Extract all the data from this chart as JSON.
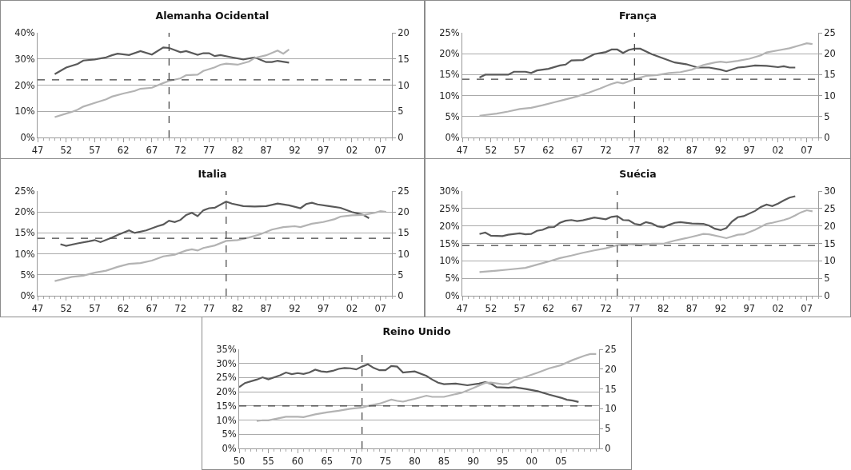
{
  "chart_data": [
    {
      "type": "line",
      "title": "Alemanha Ocidental",
      "xlim": [
        1947,
        2009
      ],
      "xticks": [
        {
          "value": 1947,
          "label": "47"
        },
        {
          "value": 1952,
          "label": "52"
        },
        {
          "value": 1957,
          "label": "57"
        },
        {
          "value": 1962,
          "label": "62"
        },
        {
          "value": 1967,
          "label": "67"
        },
        {
          "value": 1972,
          "label": "72"
        },
        {
          "value": 1977,
          "label": "77"
        },
        {
          "value": 1982,
          "label": "82"
        },
        {
          "value": 1987,
          "label": "87"
        },
        {
          "value": 1992,
          "label": "92"
        },
        {
          "value": 1997,
          "label": "97"
        },
        {
          "value": 2002,
          "label": "02"
        },
        {
          "value": 2007,
          "label": "07"
        }
      ],
      "ylim": [
        0,
        40
      ],
      "yticks": [
        {
          "value": 0,
          "label": "0%"
        },
        {
          "value": 10,
          "label": "10%"
        },
        {
          "value": 20,
          "label": "20%"
        },
        {
          "value": 30,
          "label": "30%"
        },
        {
          "value": 40,
          "label": "40%"
        }
      ],
      "y2lim": [
        0,
        20
      ],
      "y2ticks": [
        0,
        5,
        10,
        15,
        20
      ],
      "grid": "y",
      "marker": "none",
      "line_style": "solid",
      "series": [
        {
          "color": "#595959",
          "x": [
            1950,
            1952,
            1954,
            1955,
            1957,
            1959,
            1960,
            1961,
            1963,
            1965,
            1967,
            1969,
            1970,
            1972,
            1973,
            1975,
            1976,
            1977,
            1978,
            1979,
            1981,
            1983,
            1985,
            1987,
            1988,
            1989,
            1991
          ],
          "values": [
            24.2,
            26.7,
            28.1,
            29.4,
            29.8,
            30.6,
            31.4,
            32,
            31.5,
            33,
            31.7,
            34.4,
            34.2,
            32.6,
            33,
            31.6,
            32.2,
            32.2,
            31.1,
            31.5,
            30.6,
            29.8,
            30.6,
            28.8,
            28.8,
            29.3,
            28.6
          ]
        },
        {
          "color": "#b3b3b3",
          "axis": "y2",
          "x": [
            1950,
            1953,
            1954,
            1955,
            1957,
            1959,
            1960,
            1962,
            1964,
            1965,
            1967,
            1969,
            1970,
            1972,
            1973,
            1975,
            1976,
            1978,
            1979,
            1980,
            1982,
            1984,
            1985,
            1987,
            1989,
            1990,
            1991
          ],
          "values": [
            3.9,
            4.9,
            5.3,
            5.9,
            6.6,
            7.3,
            7.8,
            8.4,
            8.9,
            9.3,
            9.5,
            10.4,
            10.8,
            11.3,
            11.9,
            12,
            12.7,
            13.4,
            13.9,
            14.1,
            13.9,
            14.5,
            15.2,
            15.7,
            16.6,
            16,
            16.8
          ]
        }
      ],
      "ref_lines": [
        {
          "axis": "x",
          "value": 1970,
          "color": "#404040",
          "line_style": "dashed"
        },
        {
          "axis": "y",
          "value": 22,
          "color": "#404040",
          "line_style": "dashed"
        }
      ]
    },
    {
      "type": "line",
      "title": "França",
      "xlim": [
        1947,
        2009.0
      ],
      "xticks": [
        {
          "value": 1947,
          "label": "47"
        },
        {
          "value": 1952,
          "label": "52"
        },
        {
          "value": 1957,
          "label": "57"
        },
        {
          "value": 1962,
          "label": "62"
        },
        {
          "value": 1967,
          "label": "67"
        },
        {
          "value": 1972,
          "label": "72"
        },
        {
          "value": 1977,
          "label": "77"
        },
        {
          "value": 1982,
          "label": "82"
        },
        {
          "value": 1987,
          "label": "87"
        },
        {
          "value": 1992,
          "label": "92"
        },
        {
          "value": 1997,
          "label": "97"
        },
        {
          "value": 2002,
          "label": "02"
        },
        {
          "value": 2007,
          "label": "07"
        }
      ],
      "ylim": [
        0,
        25
      ],
      "yticks": [
        {
          "value": 0,
          "label": "0%"
        },
        {
          "value": 5,
          "label": "5%"
        },
        {
          "value": 10,
          "label": "10%"
        },
        {
          "value": 15,
          "label": "15%"
        },
        {
          "value": 20,
          "label": "20%"
        },
        {
          "value": 25,
          "label": "25%"
        }
      ],
      "y2lim": [
        0,
        25
      ],
      "y2ticks": [
        0,
        5,
        10,
        15,
        20,
        25
      ],
      "grid": "y",
      "marker": "none",
      "line_style": "solid",
      "series": [
        {
          "color": "#595959",
          "x": [
            1950,
            1951,
            1955,
            1956,
            1958,
            1959,
            1960,
            1962,
            1964,
            1965,
            1966,
            1968,
            1970,
            1972,
            1973,
            1974,
            1975,
            1976,
            1977,
            1978,
            1980,
            1982,
            1984,
            1986,
            1988,
            1990,
            1992,
            1993,
            1995,
            1996,
            1998,
            2000,
            2002,
            2003,
            2004,
            2005
          ],
          "values": [
            14.3,
            15,
            15,
            15.7,
            15.7,
            15.4,
            16,
            16.4,
            17.2,
            17.4,
            18.4,
            18.5,
            19.9,
            20.4,
            21,
            21,
            20.2,
            20.9,
            21.2,
            21.2,
            19.9,
            18.9,
            17.9,
            17.5,
            16.7,
            16.7,
            16.2,
            15.8,
            16.7,
            16.8,
            17.2,
            17.1,
            16.8,
            17,
            16.7,
            16.7
          ]
        },
        {
          "color": "#b3b3b3",
          "axis": "y2",
          "x": [
            1950,
            1953,
            1955,
            1957,
            1959,
            1961,
            1963,
            1965,
            1967,
            1969,
            1971,
            1973,
            1974,
            1975,
            1977,
            1979,
            1981,
            1983,
            1985,
            1987,
            1989,
            1991,
            1992,
            1993,
            1995,
            1997,
            1999,
            2000,
            2002,
            2004,
            2006,
            2007,
            2008
          ],
          "values": [
            5.2,
            5.7,
            6.2,
            6.8,
            7.1,
            7.7,
            8.4,
            9.1,
            9.8,
            10.7,
            11.7,
            12.8,
            13.2,
            12.9,
            13.9,
            14.7,
            14.9,
            15.4,
            15.6,
            16.2,
            17.3,
            17.9,
            18.1,
            17.9,
            18.3,
            18.8,
            19.6,
            20.3,
            20.8,
            21.3,
            22.1,
            22.5,
            22.3
          ]
        }
      ],
      "ref_lines": [
        {
          "axis": "x",
          "value": 1977,
          "color": "#404040",
          "line_style": "dashed"
        },
        {
          "axis": "y",
          "value": 13.9,
          "color": "#404040",
          "line_style": "dashed"
        }
      ]
    },
    {
      "type": "line",
      "title": "Italia",
      "xlim": [
        1947,
        2009.0
      ],
      "xticks": [
        {
          "value": 1947,
          "label": "47"
        },
        {
          "value": 1952,
          "label": "52"
        },
        {
          "value": 1957,
          "label": "57"
        },
        {
          "value": 1962,
          "label": "62"
        },
        {
          "value": 1967,
          "label": "67"
        },
        {
          "value": 1972,
          "label": "72"
        },
        {
          "value": 1977,
          "label": "77"
        },
        {
          "value": 1982,
          "label": "82"
        },
        {
          "value": 1987,
          "label": "87"
        },
        {
          "value": 1992,
          "label": "92"
        },
        {
          "value": 1997,
          "label": "97"
        },
        {
          "value": 2002,
          "label": "02"
        },
        {
          "value": 2007,
          "label": "07"
        }
      ],
      "ylim": [
        0,
        25
      ],
      "yticks": [
        {
          "value": 0,
          "label": "0%"
        },
        {
          "value": 5,
          "label": "5%"
        },
        {
          "value": 10,
          "label": "10%"
        },
        {
          "value": 15,
          "label": "15%"
        },
        {
          "value": 20,
          "label": "20%"
        },
        {
          "value": 25,
          "label": "25%"
        }
      ],
      "y2lim": [
        0,
        25
      ],
      "y2ticks": [
        0,
        5,
        10,
        15,
        20,
        25
      ],
      "grid": "y",
      "marker": "none",
      "line_style": "solid",
      "series": [
        {
          "color": "#595959",
          "x": [
            1951,
            1952,
            1954,
            1956,
            1957,
            1958,
            1960,
            1961,
            1963,
            1964,
            1966,
            1968,
            1969,
            1970,
            1971,
            1972,
            1973,
            1974,
            1975,
            1976,
            1977,
            1978,
            1980,
            1981,
            1983,
            1985,
            1987,
            1989,
            1991,
            1993,
            1994,
            1995,
            1996,
            1998,
            2000,
            2002,
            2004,
            2005
          ],
          "values": [
            12.3,
            11.9,
            12.5,
            13,
            13.3,
            12.8,
            13.9,
            14.5,
            15.6,
            15,
            15.6,
            16.6,
            17,
            17.9,
            17.6,
            18.1,
            19.3,
            19.8,
            19,
            20.4,
            20.9,
            21,
            22.5,
            22,
            21.4,
            21.3,
            21.4,
            22,
            21.6,
            20.9,
            21.9,
            22.2,
            21.8,
            21.4,
            21,
            20,
            19.3,
            18.5
          ]
        },
        {
          "color": "#b3b3b3",
          "axis": "y2",
          "x": [
            1950,
            1953,
            1955,
            1957,
            1959,
            1961,
            1963,
            1965,
            1967,
            1969,
            1971,
            1973,
            1974,
            1975,
            1976,
            1978,
            1980,
            1982,
            1984,
            1986,
            1988,
            1990,
            1992,
            1993,
            1995,
            1997,
            1999,
            2000,
            2002,
            2004,
            2006,
            2007,
            2008
          ],
          "values": [
            3.5,
            4.5,
            4.8,
            5.5,
            6,
            6.9,
            7.6,
            7.8,
            8.4,
            9.4,
            9.8,
            10.8,
            11.1,
            10.8,
            11.4,
            12,
            13.1,
            13.3,
            13.9,
            14.7,
            15.8,
            16.4,
            16.6,
            16.4,
            17.2,
            17.6,
            18.3,
            18.9,
            19.2,
            19.3,
            19.8,
            20.2,
            20
          ]
        }
      ],
      "ref_lines": [
        {
          "axis": "x",
          "value": 1980,
          "color": "#404040",
          "line_style": "dashed"
        },
        {
          "axis": "y",
          "value": 13.7,
          "color": "#404040",
          "line_style": "dashed"
        }
      ]
    },
    {
      "type": "line",
      "title": "Suécia",
      "xlim": [
        1947,
        2009.0
      ],
      "xticks": [
        {
          "value": 1947,
          "label": "47"
        },
        {
          "value": 1952,
          "label": "52"
        },
        {
          "value": 1957,
          "label": "57"
        },
        {
          "value": 1962,
          "label": "62"
        },
        {
          "value": 1967,
          "label": "67"
        },
        {
          "value": 1972,
          "label": "72"
        },
        {
          "value": 1977,
          "label": "77"
        },
        {
          "value": 1982,
          "label": "82"
        },
        {
          "value": 1987,
          "label": "87"
        },
        {
          "value": 1992,
          "label": "92"
        },
        {
          "value": 1997,
          "label": "97"
        },
        {
          "value": 2002,
          "label": "02"
        },
        {
          "value": 2007,
          "label": "07"
        }
      ],
      "ylim": [
        0,
        30
      ],
      "yticks": [
        {
          "value": 0,
          "label": "0%"
        },
        {
          "value": 5,
          "label": "5%"
        },
        {
          "value": 10,
          "label": "10%"
        },
        {
          "value": 15,
          "label": "15%"
        },
        {
          "value": 20,
          "label": "20%"
        },
        {
          "value": 25,
          "label": "25%"
        },
        {
          "value": 30,
          "label": "30%"
        }
      ],
      "y2lim": [
        0,
        30
      ],
      "y2ticks": [
        0,
        5,
        10,
        15,
        20,
        25,
        30
      ],
      "grid": "y",
      "marker": "none",
      "line_style": "solid",
      "series": [
        {
          "color": "#595959",
          "x": [
            1950,
            1951,
            1952,
            1954,
            1955,
            1957,
            1958,
            1959,
            1960,
            1961,
            1962,
            1963,
            1964,
            1965,
            1966,
            1967,
            1968,
            1970,
            1972,
            1973,
            1974,
            1975,
            1976,
            1977,
            1978,
            1979,
            1980,
            1981,
            1982,
            1983,
            1984,
            1985,
            1987,
            1989,
            1990,
            1991,
            1992,
            1993,
            1994,
            1995,
            1996,
            1998,
            1999,
            2000,
            2001,
            2002,
            2003,
            2004,
            2005
          ],
          "values": [
            17.7,
            18.1,
            17.2,
            17.1,
            17.5,
            17.9,
            17.6,
            17.7,
            18.6,
            18.9,
            19.6,
            19.7,
            20.9,
            21.5,
            21.7,
            21.4,
            21.6,
            22.4,
            21.9,
            22.6,
            22.8,
            21.7,
            21.6,
            20.6,
            20.3,
            21.1,
            20.7,
            19.9,
            19.6,
            20.3,
            20.9,
            21.1,
            20.7,
            20.6,
            20.1,
            19.2,
            18.8,
            19.4,
            21.3,
            22.5,
            22.8,
            24.3,
            25.4,
            26.1,
            25.7,
            26.4,
            27.3,
            28.1,
            28.5
          ]
        },
        {
          "color": "#b3b3b3",
          "axis": "y2",
          "x": [
            1950,
            1953,
            1955,
            1958,
            1960,
            1962,
            1964,
            1966,
            1968,
            1970,
            1972,
            1974,
            1976,
            1978,
            1980,
            1982,
            1984,
            1986,
            1988,
            1989,
            1990,
            1992,
            1993,
            1995,
            1996,
            1998,
            2000,
            2001,
            2003,
            2004,
            2005,
            2006,
            2007,
            2008
          ],
          "values": [
            6.8,
            7.2,
            7.5,
            8,
            8.9,
            9.8,
            10.8,
            11.5,
            12.3,
            13,
            13.6,
            14.5,
            14.8,
            14.5,
            14.9,
            14.9,
            15.8,
            16.5,
            17.3,
            17.7,
            17.6,
            16.9,
            16.5,
            17.5,
            17.6,
            18.9,
            20.6,
            20.9,
            21.7,
            22.2,
            23,
            23.9,
            24.5,
            24.2
          ]
        }
      ],
      "ref_lines": [
        {
          "axis": "x",
          "value": 1974,
          "color": "#404040",
          "line_style": "dashed"
        },
        {
          "axis": "y",
          "value": 14.4,
          "color": "#404040",
          "line_style": "dashed"
        }
      ]
    },
    {
      "type": "line",
      "title": "Reino Unido",
      "xlim": [
        1950,
        2011.5
      ],
      "xticks": [
        {
          "value": 1950,
          "label": "50"
        },
        {
          "value": 1955,
          "label": "55"
        },
        {
          "value": 1960,
          "label": "60"
        },
        {
          "value": 1965,
          "label": "65"
        },
        {
          "value": 1970,
          "label": "70"
        },
        {
          "value": 1975,
          "label": "75"
        },
        {
          "value": 1980,
          "label": "80"
        },
        {
          "value": 1985,
          "label": "85"
        },
        {
          "value": 1990,
          "label": "90"
        },
        {
          "value": 1995,
          "label": "95"
        },
        {
          "value": 2000,
          "label": "00"
        },
        {
          "value": 2005,
          "label": "05"
        }
      ],
      "ylim": [
        0,
        35
      ],
      "yticks": [
        {
          "value": 0,
          "label": "0%"
        },
        {
          "value": 5,
          "label": "5%"
        },
        {
          "value": 10,
          "label": "10%"
        },
        {
          "value": 15,
          "label": "15%"
        },
        {
          "value": 20,
          "label": "20%"
        },
        {
          "value": 25,
          "label": "25%"
        },
        {
          "value": 30,
          "label": "30%"
        },
        {
          "value": 35,
          "label": "35%"
        }
      ],
      "y2lim": [
        0,
        25
      ],
      "y2ticks": [
        0,
        5,
        10,
        15,
        20,
        25
      ],
      "grid": "y",
      "marker": "none",
      "line_style": "solid",
      "series": [
        {
          "color": "#595959",
          "x": [
            1950,
            1951,
            1953,
            1954,
            1955,
            1957,
            1958,
            1959,
            1960,
            1961,
            1962,
            1963,
            1964,
            1965,
            1966,
            1967,
            1968,
            1969,
            1970,
            1971,
            1972,
            1973,
            1974,
            1975,
            1976,
            1977,
            1978,
            1980,
            1982,
            1983,
            1984,
            1985,
            1987,
            1989,
            1991,
            1992,
            1993,
            1994,
            1996,
            1997,
            1999,
            2001,
            2003,
            2005,
            2006,
            2007,
            2008
          ],
          "values": [
            21.6,
            23.1,
            24.3,
            25.1,
            24.4,
            25.8,
            26.8,
            26.2,
            26.6,
            26.3,
            26.8,
            27.8,
            27.2,
            27,
            27.4,
            28.1,
            28.4,
            28.3,
            27.9,
            28.9,
            29.7,
            28.4,
            27.6,
            27.6,
            29.1,
            28.9,
            26.8,
            27.2,
            25.6,
            24.3,
            23.2,
            22.7,
            22.9,
            22.3,
            22.9,
            23.4,
            22.9,
            21.6,
            21.4,
            21.6,
            21,
            20.2,
            19,
            17.9,
            17.2,
            16.9,
            16.4
          ]
        },
        {
          "color": "#b3b3b3",
          "axis": "y2",
          "x": [
            1953,
            1954,
            1955,
            1957,
            1958,
            1960,
            1961,
            1963,
            1965,
            1967,
            1969,
            1971,
            1972,
            1974,
            1975,
            1976,
            1977,
            1978,
            1980,
            1982,
            1983,
            1985,
            1987,
            1988,
            1990,
            1992,
            1993,
            1995,
            1996,
            1997,
            1999,
            2001,
            2003,
            2005,
            2007,
            2009,
            2010,
            2011
          ],
          "values": [
            6.9,
            7.1,
            7.1,
            7.7,
            8,
            8,
            7.9,
            8.6,
            9.1,
            9.5,
            10,
            10.3,
            10.7,
            11.3,
            11.8,
            12.3,
            12,
            11.8,
            12.5,
            13.3,
            13,
            13,
            13.7,
            14,
            15.2,
            16.5,
            16.6,
            16.2,
            16.3,
            17.2,
            18.1,
            19.1,
            20.2,
            21,
            22.3,
            23.4,
            23.8,
            23.8
          ]
        }
      ],
      "ref_lines": [
        {
          "axis": "x",
          "value": 1971,
          "color": "#404040",
          "line_style": "dashed"
        },
        {
          "axis": "y",
          "value": 15,
          "color": "#404040",
          "line_style": "dashed"
        }
      ]
    }
  ]
}
